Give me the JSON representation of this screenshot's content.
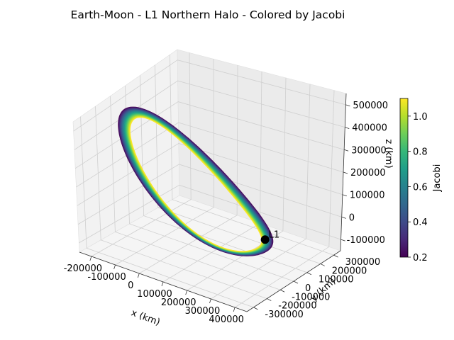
{
  "chart_data": {
    "type": "3d-line",
    "title": "Earth-Moon - L1 Northern Halo - Colored by Jacobi",
    "xlabel": "x (km)",
    "ylabel": "y (km)",
    "zlabel": "z (km)",
    "xticks": [
      -200000,
      -100000,
      0,
      100000,
      200000,
      300000,
      400000
    ],
    "yticks": [
      -300000,
      -200000,
      -100000,
      0,
      100000,
      200000,
      300000
    ],
    "zticks": [
      -100000,
      0,
      100000,
      200000,
      300000,
      400000,
      500000
    ],
    "xlim": [
      -250000,
      450000
    ],
    "ylim": [
      -350000,
      350000
    ],
    "zlim": [
      -150000,
      550000
    ],
    "grid": true,
    "colorbar": {
      "label": "Jacobi",
      "ticks": [
        0.2,
        0.4,
        0.6,
        0.8,
        1.0
      ],
      "range": [
        0.2,
        1.1
      ],
      "colormap": "viridis"
    },
    "marker": {
      "label": "L1",
      "x": 326000,
      "y": 0,
      "z": 0,
      "color": "#000000"
    },
    "family": {
      "count": 30,
      "jacobi_range": [
        0.2,
        1.1
      ],
      "x_center": 40000,
      "x_amplitude": 290000,
      "y_amplitude": 210000,
      "z_max": 420000,
      "z_min": -50000
    }
  }
}
